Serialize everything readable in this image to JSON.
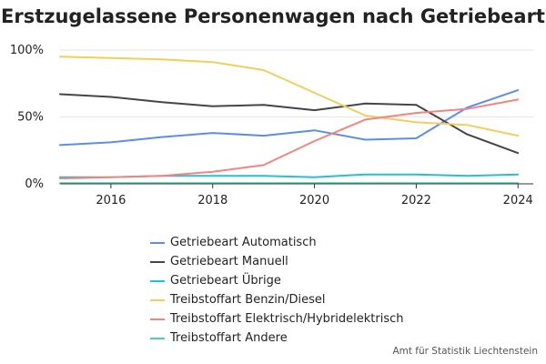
{
  "chart_data": {
    "type": "line",
    "title": "Erstzugelassene Personenwagen nach Getriebeart",
    "xlabel": "",
    "ylabel": "",
    "x": [
      2015,
      2016,
      2017,
      2018,
      2019,
      2020,
      2021,
      2022,
      2023,
      2024
    ],
    "xlim": [
      2015,
      2024.3
    ],
    "ylim": [
      0,
      100
    ],
    "x_ticks": [
      "2016",
      "2018",
      "2020",
      "2022",
      "2024"
    ],
    "y_ticks": [
      "0%",
      "50%",
      "100%"
    ],
    "grid": "horizontal",
    "legend_position": "bottom",
    "series": [
      {
        "name": "Getriebeart Automatisch",
        "color": "#5b8def",
        "values": [
          29,
          31,
          35,
          38,
          36,
          40,
          33,
          34,
          57,
          70
        ]
      },
      {
        "name": "Getriebeart Manuell",
        "color": "#454545",
        "values": [
          67,
          65,
          61,
          58,
          59,
          55,
          60,
          59,
          37,
          23
        ]
      },
      {
        "name": "Getriebeart Übrige",
        "color": "#27bfd3",
        "values": [
          5,
          5,
          6,
          6,
          6,
          5,
          7,
          7,
          6,
          7
        ]
      },
      {
        "name": "Treibstoffart Benzin/Diesel",
        "color": "#f0cf5c",
        "values": [
          95,
          94,
          93,
          91,
          85,
          68,
          51,
          46,
          44,
          36
        ]
      },
      {
        "name": "Treibstoffart Elektrisch/Hybridelektrisch",
        "color": "#f58480",
        "values": [
          4,
          5,
          6,
          9,
          14,
          32,
          48,
          53,
          56,
          63
        ]
      },
      {
        "name": "Treibstoffart Andere",
        "color": "#3fd6b0",
        "values": [
          0.5,
          0.5,
          0.5,
          0.5,
          0.5,
          0.5,
          0.5,
          0.5,
          0.5,
          0.5
        ]
      }
    ]
  },
  "source": "Amt für Statistik Liechtenstein"
}
